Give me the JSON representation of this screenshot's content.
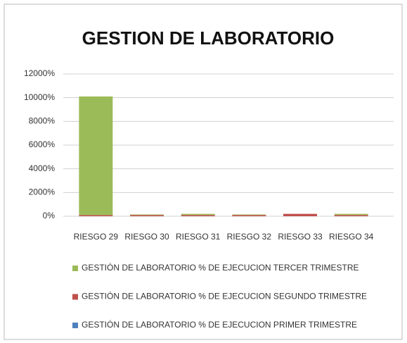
{
  "chart_data": {
    "type": "bar",
    "stacked": true,
    "title": "GESTION DE LABORATORIO",
    "categories": [
      "RIESGO 29",
      "RIESGO 30",
      "RIESGO 31",
      "RIESGO 32",
      "RIESGO 33",
      "RIESGO 34"
    ],
    "series": [
      {
        "name": "GESTIÓN DE LABORATORIO % DE EJECUCION TERCER TRIMESTRE",
        "color": "#9bbb59",
        "values": [
          10000,
          50,
          100,
          50,
          0,
          100
        ]
      },
      {
        "name": "GESTIÓN DE LABORATORIO % DE EJECUCION SEGUNDO TRIMESTRE",
        "color": "#c0504d",
        "values": [
          100,
          100,
          100,
          100,
          200,
          100
        ]
      },
      {
        "name": "GESTIÓN DE LABORATORIO % DE EJECUCION PRIMER TRIMESTRE",
        "color": "#4f81bd",
        "values": [
          0,
          0,
          0,
          0,
          0,
          0
        ]
      }
    ],
    "ylim": [
      0,
      12000
    ],
    "yticks": [
      {
        "value": 0,
        "label": "0%"
      },
      {
        "value": 2000,
        "label": "2000%"
      },
      {
        "value": 4000,
        "label": "4000%"
      },
      {
        "value": 6000,
        "label": "6000%"
      },
      {
        "value": 8000,
        "label": "8000%"
      },
      {
        "value": 10000,
        "label": "10000%"
      },
      {
        "value": 12000,
        "label": "12000%"
      }
    ],
    "grid": true,
    "legend": "bottom"
  }
}
